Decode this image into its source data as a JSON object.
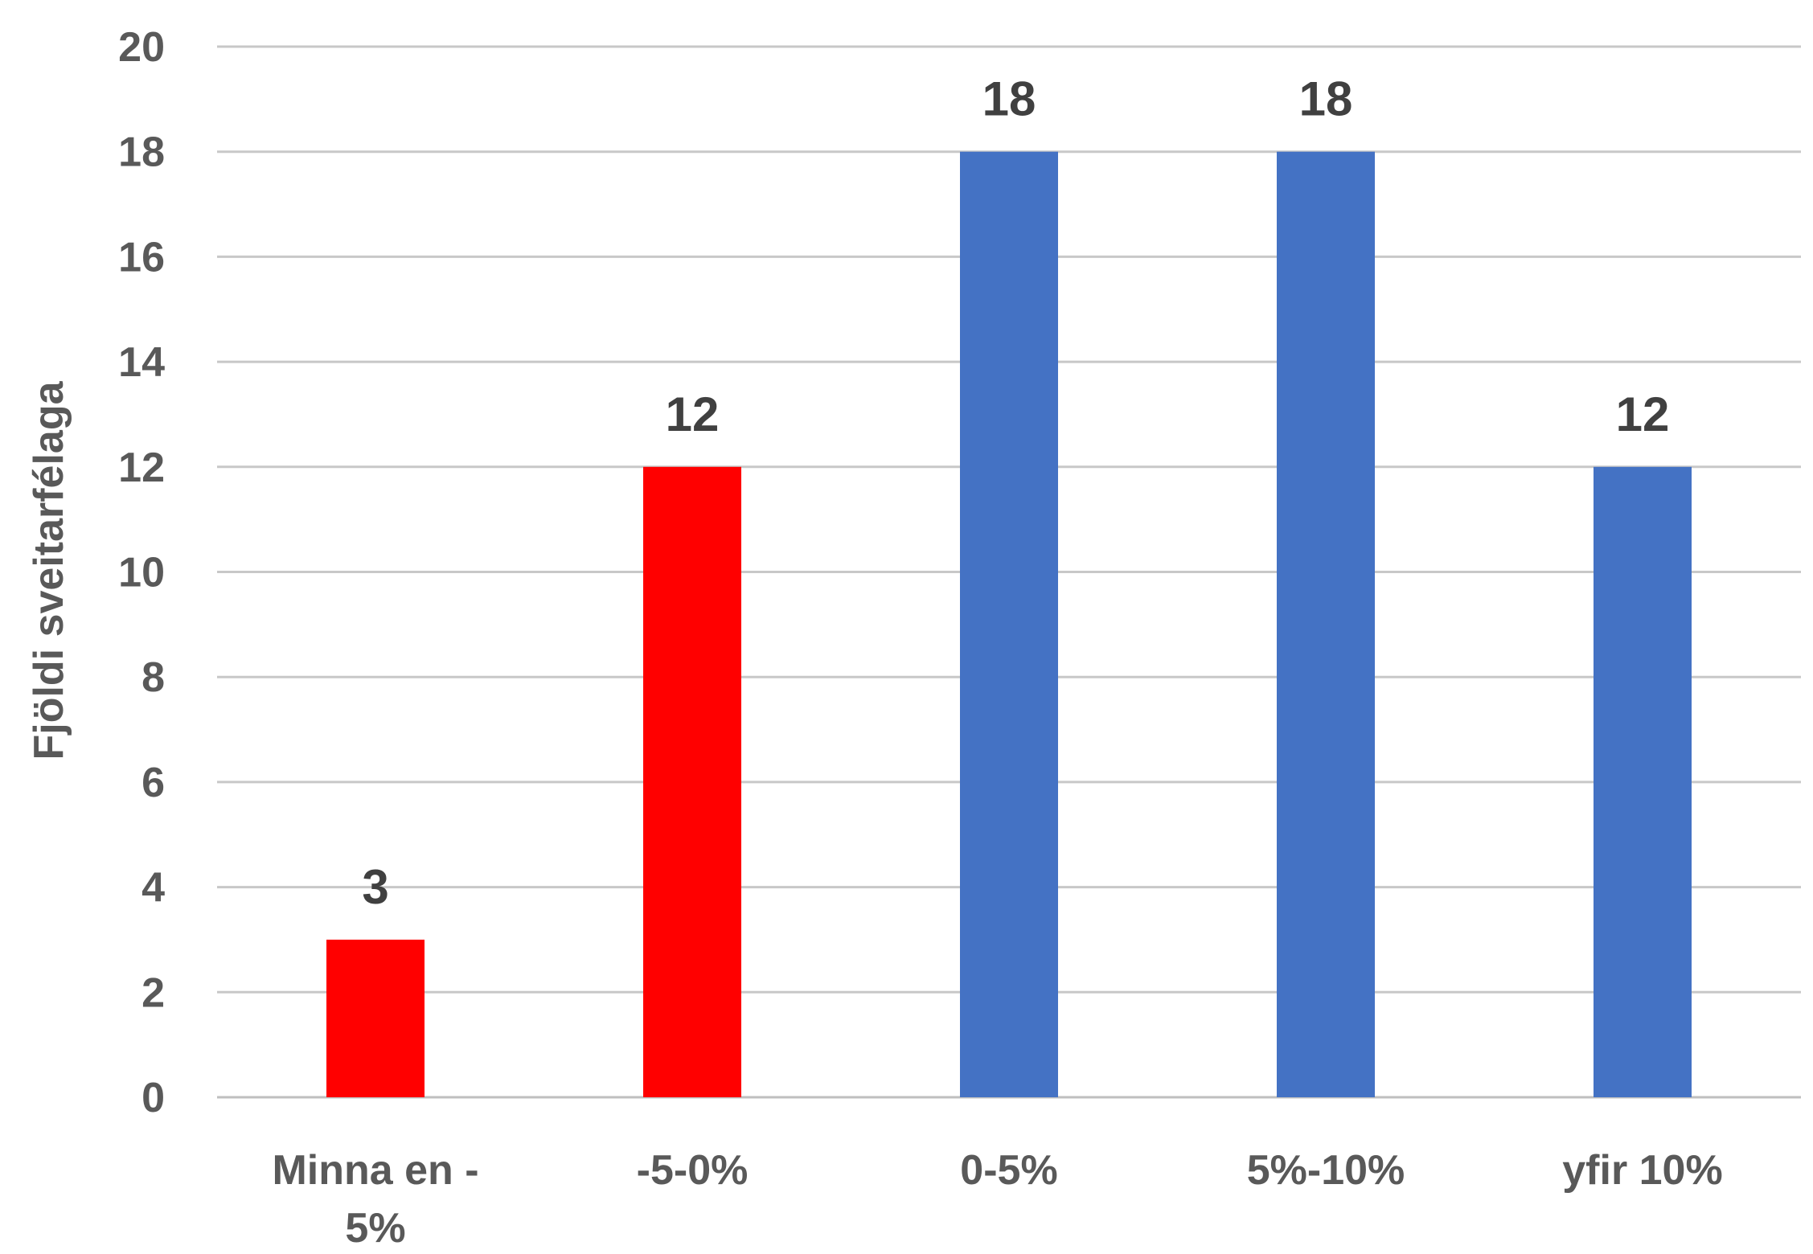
{
  "chart_data": {
    "type": "bar",
    "categories": [
      [
        "Minna en -",
        "5%"
      ],
      [
        "-5-0%"
      ],
      [
        "0-5%"
      ],
      [
        "5%-10%"
      ],
      [
        "yfir 10%"
      ]
    ],
    "values": [
      3,
      12,
      18,
      18,
      12
    ],
    "bar_colors": [
      "#ff0000",
      "#ff0000",
      "#4472c4",
      "#4472c4",
      "#4472c4"
    ],
    "data_labels": [
      "3",
      "12",
      "18",
      "18",
      "12"
    ],
    "ylabel": "Fjöldi sveitarfélaga",
    "ylim": [
      0,
      20
    ],
    "yticks": [
      0,
      2,
      4,
      6,
      8,
      10,
      12,
      14,
      16,
      18,
      20
    ],
    "grid": true,
    "legend": "none"
  }
}
